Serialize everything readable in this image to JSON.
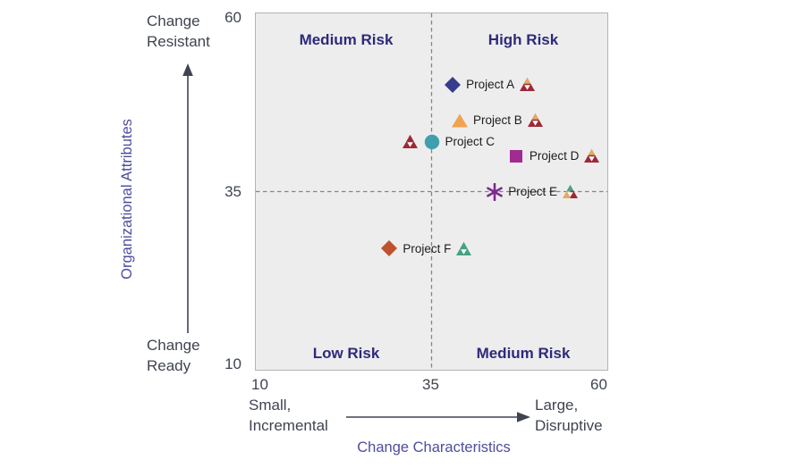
{
  "y_axis": {
    "title": "Organizational Attributes",
    "top_label": "Change Resistant",
    "bottom_label": "Change Ready"
  },
  "x_axis": {
    "title": "Change Characteristics",
    "left_label": "Small, Incremental",
    "right_label": "Large, Disruptive"
  },
  "icons": {
    "y_axis_arrow": "up-arrow",
    "x_axis_arrow": "right-arrow",
    "risk_flag": "tri-sector-warning-triangle"
  },
  "colors": {
    "plot_background": "#ededed",
    "plot_border": "#b4b4b4",
    "quadrant_label": "#2e2a7a",
    "axis_title": "#4f4c9e",
    "axis_text": "#3f4450",
    "crosshair": "#858585",
    "flag_red": "#9e2936",
    "flag_tan": "#e5a95f",
    "flag_green": "#46a184"
  },
  "chart_data": {
    "type": "scatter",
    "title": "",
    "xlabel": "Change Characteristics",
    "ylabel": "Organizational Attributes",
    "xlim": [
      10,
      60
    ],
    "ylim": [
      10,
      60
    ],
    "x_ticks": [
      10,
      35,
      60
    ],
    "y_ticks": [
      60,
      35,
      10
    ],
    "grid": false,
    "crosshair": {
      "x": 35,
      "y": 35,
      "style": "dashed"
    },
    "quadrants": [
      {
        "position": "top-left",
        "label": "Medium Risk"
      },
      {
        "position": "top-right",
        "label": "High Risk"
      },
      {
        "position": "bottom-left",
        "label": "Low Risk"
      },
      {
        "position": "bottom-right",
        "label": "Medium Risk"
      }
    ],
    "points": [
      {
        "label": "Project A",
        "x": 38,
        "y": 50,
        "marker": "diamond",
        "color": "#373c8e",
        "flag_colors": [
          "#e5a95f",
          "#9e2936",
          "#9e2936"
        ],
        "flag_side": "right"
      },
      {
        "label": "Project B",
        "x": 39,
        "y": 45,
        "marker": "triangle",
        "color": "#f0a350",
        "flag_colors": [
          "#e5a95f",
          "#9e2936",
          "#9e2936"
        ],
        "flag_side": "right"
      },
      {
        "label": "Project C",
        "x": 35,
        "y": 42,
        "marker": "circle",
        "color": "#3f9fae",
        "flag_colors": [
          "#9e2936",
          "#9e2936",
          "#9e2936"
        ],
        "flag_side": "left"
      },
      {
        "label": "Project D",
        "x": 47,
        "y": 40,
        "marker": "square",
        "color": "#a22b92",
        "flag_colors": [
          "#e5a95f",
          "#9e2936",
          "#9e2936"
        ],
        "flag_side": "right"
      },
      {
        "label": "Project E",
        "x": 44,
        "y": 35,
        "marker": "asterisk",
        "color": "#7b2b8d",
        "flag_colors": [
          "#46a184",
          "#e5a95f",
          "#9e2936"
        ],
        "flag_side": "right"
      },
      {
        "label": "Project F",
        "x": 29,
        "y": 27,
        "marker": "diamond",
        "color": "#c0512d",
        "flag_colors": [
          "#46a184",
          "#46a184",
          "#46a184"
        ],
        "flag_side": "right"
      }
    ]
  }
}
